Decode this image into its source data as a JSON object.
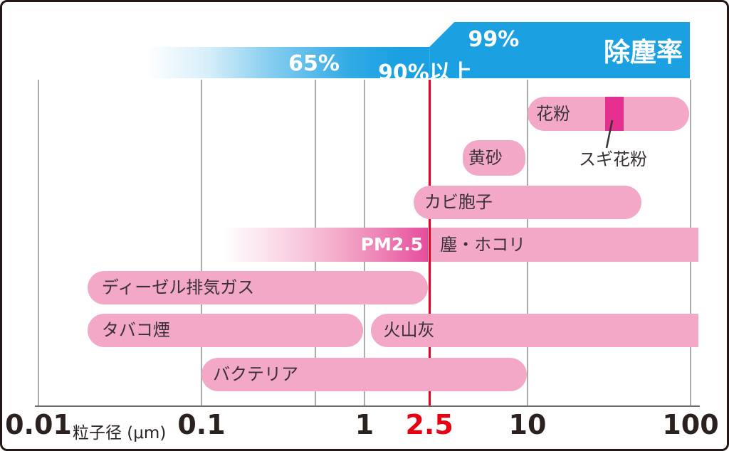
{
  "banner": {
    "title": "除塵率",
    "labels": [
      {
        "text": "65%",
        "at_um": 0.49,
        "y": 69
      },
      {
        "text": "90%以上",
        "at_um": 2.35,
        "y": 74
      },
      {
        "text": "99%",
        "at_um": 6.2,
        "y": 35
      }
    ],
    "color": "#1ba1e2",
    "step_at_um": 2.5,
    "fade_start_um": 0.046,
    "end_um": 99
  },
  "axis": {
    "caption": "粒子径 (μm)",
    "scale": "log",
    "ticks": [
      {
        "value": 0.01,
        "label": "0.01"
      },
      {
        "value": 0.1,
        "label": "0.1"
      },
      {
        "value": 1,
        "label": "1"
      },
      {
        "value": 2.5,
        "label": "2.5",
        "highlight": true
      },
      {
        "value": 10,
        "label": "10"
      },
      {
        "value": 100,
        "label": "100"
      }
    ],
    "unlabeled_gridlines": [
      0.5
    ],
    "highlight_color": "#e60012"
  },
  "chart_data": {
    "type": "bar",
    "subtype": "horizontal-range-bars",
    "title": "除塵率 (dust removal rate) vs 粒子径 particle size",
    "x_scale": "log",
    "x_unit": "μm",
    "x_range": [
      0.01,
      100
    ],
    "series": [
      {
        "id": "pollen",
        "label": "花粉",
        "min_um": 10,
        "max_um": 98,
        "row": 1,
        "ends": "pill"
      },
      {
        "id": "yellow-sand",
        "label": "黄砂",
        "min_um": 4,
        "max_um": 9.7,
        "row": 2,
        "ends": "pill"
      },
      {
        "id": "mold-spores",
        "label": "カビ胞子",
        "min_um": 2,
        "max_um": 50,
        "row": 3,
        "ends": "pill"
      },
      {
        "id": "dust",
        "label": "塵・ホコリ",
        "min_um": 0.135,
        "max_um": 112,
        "row": 4,
        "ends": "fade-flat",
        "pm_label": "PM2.5",
        "pm_boundary_um": 2.5
      },
      {
        "id": "diesel-exhaust",
        "label": "ディーゼル排気ガス",
        "min_um": 0.02,
        "max_um": 2.45,
        "row": 5,
        "ends": "pill"
      },
      {
        "id": "tobacco-smoke",
        "label": "タバコ煙",
        "min_um": 0.02,
        "max_um": 0.98,
        "row": 6,
        "ends": "pill"
      },
      {
        "id": "volcanic-ash",
        "label": "火山灰",
        "min_um": 1.1,
        "max_um": 112,
        "row": 6,
        "ends": "round-flat"
      },
      {
        "id": "bacteria",
        "label": "バクテリア",
        "min_um": 0.1,
        "max_um": 9.9,
        "row": 7,
        "ends": "pill"
      }
    ],
    "annotation": {
      "id": "cedar-pollen",
      "label": "スギ花粉",
      "min_um": 30,
      "max_um": 39,
      "on": "pollen"
    }
  },
  "colors": {
    "bar_pink": "#f3a8c7",
    "bar_deep_pink": "#e64c9c",
    "cedar_segment": "#e6308f",
    "banner_blue": "#1ba1e2",
    "red_line": "#e60027",
    "text_dark": "#3a3136"
  }
}
